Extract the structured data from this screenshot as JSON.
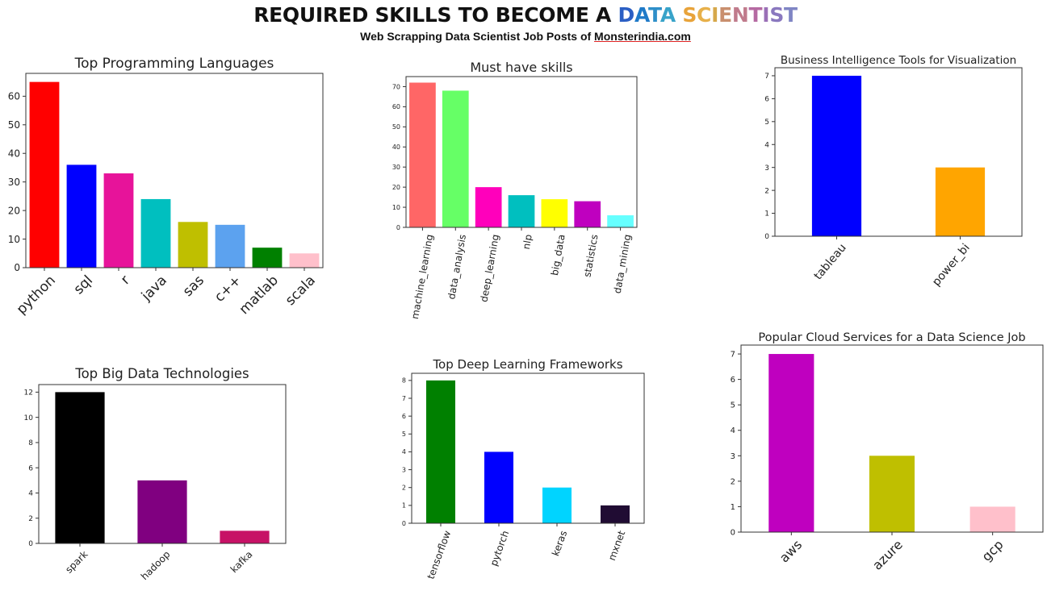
{
  "header": {
    "title_prefix": "REQUIRED SKILLS TO BECOME A ",
    "title_highlight_letters": [
      {
        "ch": "D",
        "color": "#2b5fc4"
      },
      {
        "ch": "A",
        "color": "#1f7ac8"
      },
      {
        "ch": "T",
        "color": "#2e8fc9"
      },
      {
        "ch": "A",
        "color": "#38a3c9"
      },
      {
        "ch": " ",
        "color": "#000000"
      },
      {
        "ch": "S",
        "color": "#e8a33a"
      },
      {
        "ch": "C",
        "color": "#e7b04a"
      },
      {
        "ch": "I",
        "color": "#d6a84b"
      },
      {
        "ch": "E",
        "color": "#c98f6e"
      },
      {
        "ch": "N",
        "color": "#c07b8c"
      },
      {
        "ch": "T",
        "color": "#b56aa2"
      },
      {
        "ch": "I",
        "color": "#9a6fb6"
      },
      {
        "ch": "S",
        "color": "#8a78bf"
      },
      {
        "ch": "T",
        "color": "#7f85c4"
      }
    ],
    "subtitle_prefix": "Web Scrapping Data Scientist Job Posts of ",
    "subtitle_site": "Monsterindia.com"
  },
  "chart_data": [
    {
      "type": "bar",
      "title": "Top Programming Languages",
      "categories": [
        "python",
        "sql",
        "r",
        "java",
        "sas",
        "c++",
        "matlab",
        "scala"
      ],
      "values": [
        65,
        36,
        33,
        24,
        16,
        15,
        7,
        5
      ],
      "colors": [
        "#ff0000",
        "#0000ff",
        "#e7139a",
        "#00bfbf",
        "#bfbf00",
        "#5ca2ef",
        "#008000",
        "#ffc0cb"
      ],
      "ylim": [
        0,
        68
      ],
      "yticks": [
        0,
        10,
        20,
        30,
        40,
        50,
        60
      ],
      "xlabel": "",
      "ylabel": "",
      "grid": false
    },
    {
      "type": "bar",
      "title": "Must have skills",
      "categories": [
        "machine_learning",
        "data_analysis",
        "deep_learning",
        "nlp",
        "big_data",
        "statistics",
        "data_mining"
      ],
      "values": [
        72,
        68,
        20,
        16,
        14,
        13,
        6
      ],
      "colors": [
        "#ff6666",
        "#66ff66",
        "#ff00bb",
        "#00bfbf",
        "#ffff00",
        "#bf00bf",
        "#66ffff"
      ],
      "ylim": [
        0,
        75
      ],
      "yticks": [
        0,
        10,
        20,
        30,
        40,
        50,
        60,
        70
      ],
      "xlabel": "",
      "ylabel": "",
      "grid": false
    },
    {
      "type": "bar",
      "title": "Business Intelligence Tools for Visualization",
      "categories": [
        "tableau",
        "power_bi"
      ],
      "values": [
        7,
        3
      ],
      "colors": [
        "#0000ff",
        "#ffa500"
      ],
      "ylim": [
        0,
        7.35
      ],
      "yticks": [
        0,
        1,
        2,
        3,
        4,
        5,
        6,
        7
      ],
      "xlabel": "",
      "ylabel": "",
      "grid": false
    },
    {
      "type": "bar",
      "title": "Top Big Data Technologies",
      "categories": [
        "spark",
        "hadoop",
        "kafka"
      ],
      "values": [
        12,
        5,
        1
      ],
      "colors": [
        "#000000",
        "#800080",
        "#c71266"
      ],
      "ylim": [
        0,
        12.6
      ],
      "yticks": [
        0,
        2,
        4,
        6,
        8,
        10,
        12
      ],
      "xlabel": "",
      "ylabel": "",
      "grid": false
    },
    {
      "type": "bar",
      "title": "Top Deep Learning Frameworks",
      "categories": [
        "tensorflow",
        "pytorch",
        "keras",
        "mxnet"
      ],
      "values": [
        8,
        4,
        2,
        1
      ],
      "colors": [
        "#008000",
        "#0000ff",
        "#00d4ff",
        "#200c33"
      ],
      "ylim": [
        0,
        8.4
      ],
      "yticks": [
        0,
        1,
        2,
        3,
        4,
        5,
        6,
        7,
        8
      ],
      "xlabel": "",
      "ylabel": "",
      "grid": false
    },
    {
      "type": "bar",
      "title": "Popular Cloud Services for a Data Science Job",
      "categories": [
        "aws",
        "azure",
        "gcp"
      ],
      "values": [
        7,
        3,
        1
      ],
      "colors": [
        "#bf00bf",
        "#bfbf00",
        "#ffc0cb"
      ],
      "ylim": [
        0,
        7.35
      ],
      "yticks": [
        0,
        1,
        2,
        3,
        4,
        5,
        6,
        7
      ],
      "xlabel": "",
      "ylabel": "",
      "grid": false
    }
  ]
}
